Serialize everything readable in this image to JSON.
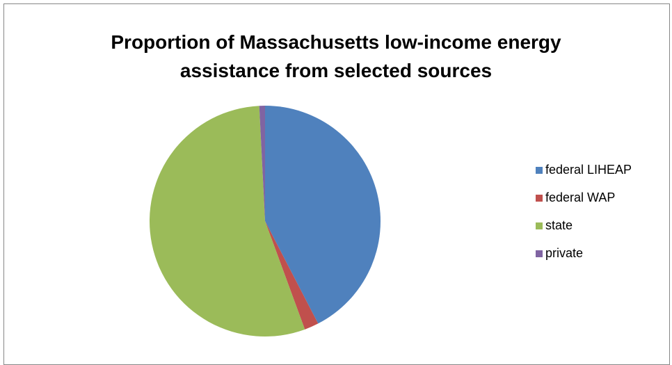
{
  "chart_data": {
    "type": "pie",
    "title": "Proportion of Massachusetts low-income energy assistance from selected sources",
    "categories": [
      "federal LIHEAP",
      "federal WAP",
      "state",
      "private"
    ],
    "values": [
      42.4,
      2.0,
      54.8,
      0.8
    ],
    "colors": [
      "#4f81bd",
      "#c0504d",
      "#9bbb59",
      "#8064a2"
    ],
    "legend": "right"
  }
}
